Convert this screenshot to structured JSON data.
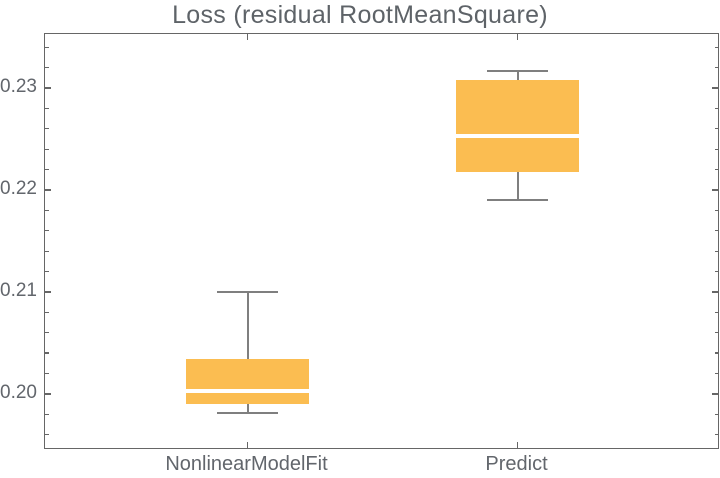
{
  "chart_data": {
    "type": "boxplot",
    "title": "Loss (residual RootMeanSquare)",
    "categories": [
      "NonlinearModelFit",
      "Predict"
    ],
    "series": [
      {
        "name": "NonlinearModelFit",
        "whisker_low": 0.1981,
        "q1": 0.199,
        "median": 0.2003,
        "q3": 0.2034,
        "whisker_high": 0.21
      },
      {
        "name": "Predict",
        "whisker_low": 0.219,
        "q1": 0.2218,
        "median": 0.2253,
        "q3": 0.2308,
        "whisker_high": 0.2317
      }
    ],
    "ylim": [
      0.1945,
      0.2353
    ],
    "yticks": [
      0.2,
      0.21,
      0.22,
      0.23
    ],
    "ytick_labels": [
      "0.20",
      "0.21",
      "0.22",
      "0.23"
    ],
    "minor_ytick_step": 0.002,
    "category_positions": [
      0.3,
      0.7
    ],
    "box_width_fraction": 0.181,
    "cap_width_fraction": 0.0905,
    "xlabel": "",
    "ylabel": "",
    "grid": false,
    "legend": false,
    "colors": {
      "box_fill": "#FBBD51",
      "median_line": "#FFFFFF",
      "whisker": "#7F7F7F",
      "frame": "#666666",
      "tick_labels": "#62666C",
      "title": "#5E6368",
      "background": "#FFFFFF"
    }
  }
}
